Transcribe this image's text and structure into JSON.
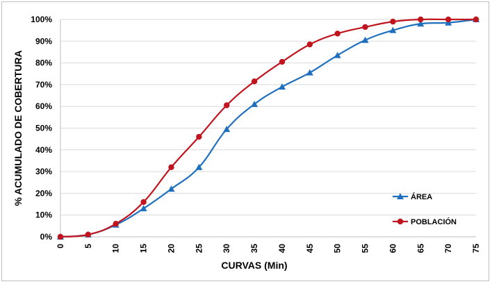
{
  "chart_data": {
    "type": "line",
    "title": "",
    "xlabel": "CURVAS (Min)",
    "ylabel": "% ACUMULADO  DE COBERTURA",
    "x": [
      0,
      5,
      10,
      15,
      20,
      25,
      30,
      35,
      40,
      45,
      50,
      55,
      60,
      65,
      70,
      75
    ],
    "xlim": [
      0,
      75
    ],
    "ylim": [
      0,
      100
    ],
    "y_ticks": [
      "0%",
      "10%",
      "20%",
      "30%",
      "40%",
      "50%",
      "60%",
      "70%",
      "80%",
      "90%",
      "100%"
    ],
    "x_ticks": [
      "0",
      "5",
      "10",
      "15",
      "20",
      "25",
      "30",
      "35",
      "40",
      "45",
      "50",
      "55",
      "60",
      "65",
      "70",
      "75"
    ],
    "grid": true,
    "legend_position": "bottom-right",
    "series": [
      {
        "name": "ÁREA",
        "color": "#1f6fbf",
        "marker": "triangle",
        "values": [
          0,
          1,
          5.5,
          13,
          22,
          32,
          49.5,
          61,
          69,
          75.5,
          83.5,
          90.5,
          95,
          98,
          98.5,
          100
        ]
      },
      {
        "name": "POBLACIÓN",
        "color": "#c0141e",
        "marker": "circle",
        "values": [
          0,
          1,
          6,
          16,
          32,
          46,
          60.5,
          71.5,
          80.5,
          88.5,
          93.5,
          96.5,
          99,
          100,
          100,
          100
        ]
      }
    ]
  }
}
